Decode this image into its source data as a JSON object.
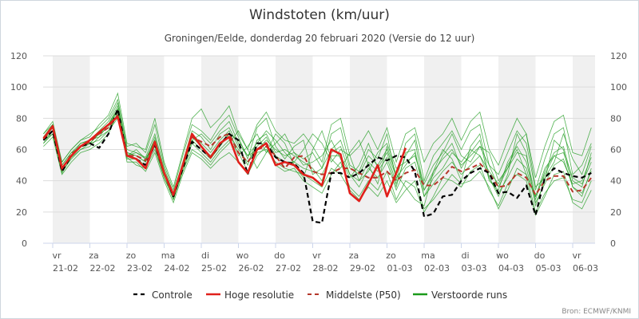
{
  "chart_data": {
    "type": "line",
    "title": "Windstoten (km/uur)",
    "subtitle": "Groningen/Eelde, donderdag 20 februari 2020 (Versie do 12 uur)",
    "source": "Bron: ECMWF/KNMI",
    "xlabel": "",
    "ylabel": "",
    "ylim": [
      0,
      120
    ],
    "yticks": [
      0,
      20,
      40,
      60,
      80,
      100,
      120
    ],
    "x_unit": "hours since vr 21-02 00:00",
    "x_start": -6,
    "x_step": 6,
    "xlim": [
      -6,
      354
    ],
    "grid": true,
    "legend_position": "bottom",
    "day_ticks": [
      {
        "day": "vr",
        "date": "21-02",
        "shaded": true
      },
      {
        "day": "za",
        "date": "22-02",
        "shaded": false
      },
      {
        "day": "zo",
        "date": "23-02",
        "shaded": true
      },
      {
        "day": "ma",
        "date": "24-02",
        "shaded": false
      },
      {
        "day": "di",
        "date": "25-02",
        "shaded": true
      },
      {
        "day": "wo",
        "date": "26-02",
        "shaded": false
      },
      {
        "day": "do",
        "date": "27-02",
        "shaded": true
      },
      {
        "day": "vr",
        "date": "28-02",
        "shaded": false
      },
      {
        "day": "za",
        "date": "29-02",
        "shaded": true
      },
      {
        "day": "zo",
        "date": "01-03",
        "shaded": false
      },
      {
        "day": "ma",
        "date": "02-03",
        "shaded": true
      },
      {
        "day": "di",
        "date": "03-03",
        "shaded": false
      },
      {
        "day": "wo",
        "date": "04-03",
        "shaded": true
      },
      {
        "day": "do",
        "date": "05-03",
        "shaded": false
      },
      {
        "day": "vr",
        "date": "06-03",
        "shaded": true
      }
    ],
    "series": [
      {
        "name": "Controle",
        "color": "#000000",
        "style": "dashed",
        "values": [
          66,
          72,
          46,
          56,
          62,
          64,
          61,
          70,
          86,
          56,
          54,
          50,
          63,
          45,
          30,
          48,
          65,
          60,
          55,
          63,
          70,
          66,
          44,
          64,
          64,
          55,
          52,
          51,
          45,
          14,
          13,
          45,
          45,
          42,
          45,
          50,
          55,
          53,
          56,
          55,
          46,
          17,
          19,
          30,
          31,
          40,
          45,
          48,
          45,
          32,
          33,
          29,
          37,
          18,
          42,
          48,
          45,
          43,
          42,
          45
        ]
      },
      {
        "name": "Hoge resolutie",
        "color": "#e0201b",
        "style": "solid",
        "values": [
          67,
          75,
          48,
          56,
          62,
          66,
          71,
          76,
          81,
          56,
          54,
          48,
          65,
          45,
          31,
          50,
          70,
          62,
          55,
          64,
          68,
          52,
          45,
          60,
          64,
          50,
          52,
          50,
          44,
          42,
          37,
          60,
          57,
          32,
          27,
          38,
          50,
          30,
          45,
          61
        ]
      },
      {
        "name": "Middelste (P50)",
        "color": "#b5372a",
        "style": "dashed",
        "values": [
          67,
          72,
          47,
          57,
          62,
          65,
          70,
          74,
          82,
          56,
          56,
          53,
          63,
          45,
          30,
          50,
          68,
          65,
          62,
          68,
          70,
          58,
          52,
          60,
          62,
          56,
          48,
          55,
          56,
          46,
          44,
          45,
          48,
          48,
          45,
          42,
          42,
          46,
          40,
          45,
          47,
          37,
          37,
          42,
          49,
          46,
          48,
          51,
          45,
          36,
          37,
          45,
          42,
          31,
          40,
          43,
          43,
          33,
          34,
          42
        ]
      },
      {
        "name": "Verstoorde runs",
        "color": "#1a9a1a",
        "style": "thin",
        "members": [
          [
            68,
            74,
            50,
            58,
            64,
            66,
            72,
            78,
            90,
            60,
            58,
            55,
            70,
            48,
            32,
            52,
            72,
            68,
            60,
            70,
            74,
            62,
            50,
            66,
            70,
            58,
            60,
            56,
            52,
            48,
            40,
            58,
            62,
            44,
            40,
            52,
            46,
            55,
            36,
            58,
            60,
            30,
            42,
            48,
            58,
            52,
            60,
            56,
            46,
            38,
            50,
            60,
            44,
            30,
            48,
            56,
            52,
            38,
            40,
            55
          ],
          [
            64,
            70,
            45,
            55,
            60,
            62,
            68,
            72,
            80,
            55,
            50,
            48,
            60,
            42,
            28,
            46,
            60,
            56,
            50,
            58,
            64,
            72,
            60,
            48,
            58,
            70,
            64,
            50,
            42,
            60,
            72,
            54,
            48,
            58,
            66,
            50,
            38,
            62,
            44,
            36,
            28,
            24,
            46,
            60,
            54,
            40,
            62,
            70,
            42,
            30,
            44,
            70,
            58,
            24,
            40,
            66,
            60,
            36,
            30,
            48
          ],
          [
            70,
            78,
            52,
            60,
            66,
            70,
            74,
            80,
            92,
            62,
            64,
            58,
            76,
            50,
            34,
            56,
            76,
            72,
            66,
            76,
            82,
            68,
            54,
            74,
            80,
            62,
            54,
            62,
            66,
            44,
            48,
            70,
            74,
            50,
            46,
            60,
            54,
            70,
            40,
            64,
            70,
            40,
            56,
            64,
            72,
            60,
            72,
            76,
            50,
            44,
            58,
            72,
            64,
            34,
            54,
            70,
            74,
            44,
            50,
            64
          ],
          [
            62,
            68,
            44,
            52,
            58,
            60,
            64,
            70,
            84,
            52,
            52,
            46,
            58,
            40,
            26,
            44,
            58,
            54,
            48,
            54,
            58,
            52,
            44,
            56,
            62,
            50,
            46,
            48,
            40,
            36,
            32,
            44,
            52,
            36,
            30,
            40,
            34,
            46,
            28,
            40,
            36,
            20,
            30,
            42,
            40,
            36,
            46,
            50,
            34,
            24,
            38,
            44,
            40,
            18,
            30,
            44,
            46,
            26,
            22,
            34
          ],
          [
            66,
            72,
            48,
            56,
            62,
            66,
            70,
            76,
            88,
            58,
            56,
            52,
            66,
            44,
            30,
            50,
            70,
            64,
            58,
            66,
            72,
            56,
            62,
            70,
            58,
            64,
            70,
            58,
            50,
            52,
            56,
            66,
            54,
            42,
            50,
            64,
            48,
            58,
            38,
            56,
            66,
            34,
            44,
            56,
            64,
            48,
            58,
            66,
            40,
            34,
            52,
            62,
            52,
            28,
            46,
            58,
            62,
            40,
            36,
            58
          ],
          [
            68,
            76,
            50,
            58,
            62,
            64,
            70,
            74,
            86,
            56,
            60,
            54,
            64,
            46,
            28,
            48,
            66,
            70,
            64,
            72,
            78,
            64,
            56,
            64,
            72,
            66,
            58,
            52,
            60,
            70,
            64,
            52,
            60,
            56,
            40,
            46,
            58,
            64,
            48,
            52,
            56,
            38,
            50,
            58,
            70,
            56,
            52,
            62,
            58,
            40,
            48,
            64,
            70,
            36,
            42,
            52,
            70,
            54,
            44,
            62
          ],
          [
            64,
            72,
            46,
            54,
            60,
            64,
            66,
            72,
            82,
            54,
            54,
            50,
            62,
            42,
            30,
            46,
            64,
            58,
            52,
            60,
            66,
            58,
            46,
            58,
            60,
            52,
            48,
            46,
            44,
            40,
            36,
            48,
            44,
            34,
            28,
            36,
            30,
            40,
            26,
            34,
            40,
            22,
            28,
            36,
            44,
            38,
            40,
            46,
            36,
            22,
            34,
            48,
            44,
            20,
            32,
            40,
            42,
            28,
            26,
            40
          ],
          [
            70,
            76,
            52,
            60,
            66,
            68,
            76,
            82,
            96,
            64,
            62,
            60,
            80,
            52,
            36,
            58,
            80,
            86,
            74,
            80,
            88,
            70,
            60,
            76,
            84,
            72,
            66,
            64,
            70,
            62,
            52,
            76,
            80,
            56,
            62,
            72,
            60,
            74,
            52,
            70,
            74,
            52,
            64,
            70,
            80,
            66,
            78,
            84,
            60,
            50,
            66,
            80,
            70,
            42,
            62,
            78,
            82,
            58,
            56,
            74
          ],
          [
            66,
            74,
            48,
            56,
            62,
            64,
            70,
            76,
            86,
            58,
            56,
            52,
            68,
            46,
            32,
            50,
            68,
            62,
            56,
            64,
            70,
            60,
            52,
            62,
            68,
            56,
            52,
            52,
            48,
            46,
            44,
            56,
            56,
            44,
            36,
            48,
            42,
            52,
            34,
            48,
            52,
            30,
            38,
            46,
            52,
            44,
            50,
            56,
            42,
            32,
            42,
            54,
            48,
            26,
            38,
            50,
            54,
            36,
            32,
            46
          ],
          [
            66,
            70,
            48,
            56,
            64,
            66,
            68,
            76,
            84,
            56,
            58,
            54,
            66,
            46,
            30,
            48,
            66,
            60,
            54,
            62,
            70,
            66,
            56,
            60,
            66,
            60,
            56,
            58,
            54,
            58,
            48,
            60,
            66,
            48,
            44,
            56,
            50,
            60,
            42,
            50,
            58,
            34,
            46,
            54,
            60,
            50,
            56,
            62,
            50,
            36,
            48,
            58,
            56,
            30,
            44,
            56,
            58,
            42,
            38,
            52
          ]
        ]
      }
    ]
  }
}
